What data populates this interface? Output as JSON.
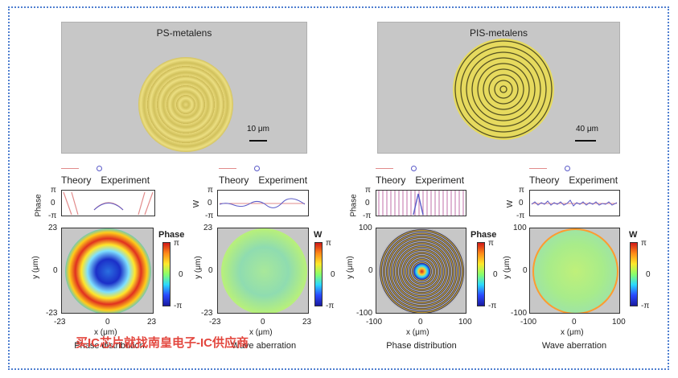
{
  "panels": {
    "ps_title": "PS-metalens",
    "ps_scale": "10 μm",
    "pis_title": "PIS-metalens",
    "pis_scale": "40 μm"
  },
  "legend": {
    "theory": "Theory",
    "experiment": "Experiment"
  },
  "strip_labels": {
    "phase": "Phase",
    "w": "W",
    "pi": "π",
    "zero": "0",
    "neg_pi": "-π"
  },
  "maps": {
    "ps_phase": {
      "ymax": "23",
      "ymid": "0",
      "ymin": "-23",
      "xmin": "-23",
      "xmid": "0",
      "xmax": "23"
    },
    "ps_wave": {
      "ymax": "23",
      "ymid": "0",
      "ymin": "-23",
      "xmin": "-23",
      "xmid": "0",
      "xmax": "23"
    },
    "pis_phase": {
      "ymax": "100",
      "ymid": "0",
      "ymin": "-100",
      "xmin": "-100",
      "xmid": "0",
      "xmax": "100"
    },
    "pis_wave": {
      "ymax": "100",
      "ymid": "0",
      "ymin": "-100",
      "xmin": "-100",
      "xmid": "0",
      "xmax": "100"
    }
  },
  "axes": {
    "x": "x (μm)",
    "y": "y (μm)"
  },
  "colorbar": {
    "phase_title": "Phase",
    "w_title": "W",
    "top": "π",
    "mid": "0",
    "bot": "-π"
  },
  "captions": {
    "phase": "Phase distribution",
    "wave": "Wave aberration"
  },
  "watermark": "买IC芯片就找南皇电子-IC供应商",
  "colors": {
    "accent": "#e3473f",
    "frame": "#4f7fd0",
    "theory": "#e28b8b",
    "experiment": "#5a5ac8"
  }
}
